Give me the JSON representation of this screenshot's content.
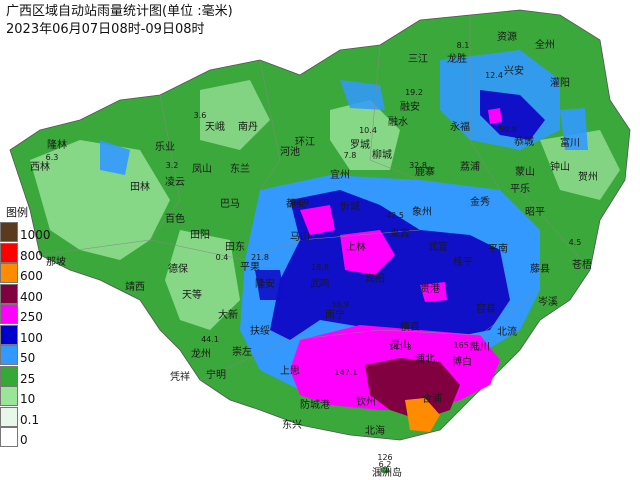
{
  "title": "广西区域自动站雨量统计图(单位 :毫米)",
  "subtitle": "2023年06月07日08时-09日08时",
  "legend": {
    "title": "图例",
    "items": [
      {
        "label": "1000",
        "color": "#5c3a1e"
      },
      {
        "label": "800",
        "color": "#ff0000"
      },
      {
        "label": "600",
        "color": "#ff8c00"
      },
      {
        "label": "400",
        "color": "#800040"
      },
      {
        "label": "250",
        "color": "#ff00ff"
      },
      {
        "label": "100",
        "color": "#0000cc"
      },
      {
        "label": "50",
        "color": "#3399ff"
      },
      {
        "label": "25",
        "color": "#33aa33"
      },
      {
        "label": "10",
        "color": "#99e699"
      },
      {
        "label": "0.1",
        "color": "#e8f8e8"
      },
      {
        "label": "0",
        "color": "#ffffff"
      }
    ]
  },
  "cities": [
    {
      "name": "资源"
    },
    {
      "name": "全州"
    },
    {
      "name": "三江"
    },
    {
      "name": "龙胜"
    },
    {
      "name": "兴安"
    },
    {
      "name": "灌阳"
    },
    {
      "name": "融安"
    },
    {
      "name": "永福"
    },
    {
      "name": "恭城"
    },
    {
      "name": "富川"
    },
    {
      "name": "隆林"
    },
    {
      "name": "西林"
    },
    {
      "name": "乐业"
    },
    {
      "name": "天峨"
    },
    {
      "name": "南丹"
    },
    {
      "name": "环江"
    },
    {
      "name": "罗城"
    },
    {
      "name": "融水"
    },
    {
      "name": "凤山"
    },
    {
      "name": "东兰"
    },
    {
      "name": "河池"
    },
    {
      "name": "宜州"
    },
    {
      "name": "柳城"
    },
    {
      "name": "鹿寨"
    },
    {
      "name": "荔浦"
    },
    {
      "name": "平乐"
    },
    {
      "name": "钟山"
    },
    {
      "name": "贺州"
    },
    {
      "name": "田林"
    },
    {
      "name": "凌云"
    },
    {
      "name": "巴马"
    },
    {
      "name": "都安"
    },
    {
      "name": "忻城"
    },
    {
      "name": "象州"
    },
    {
      "name": "金秀"
    },
    {
      "name": "蒙山"
    },
    {
      "name": "昭平"
    },
    {
      "name": "百色"
    },
    {
      "name": "田阳"
    },
    {
      "name": "田东"
    },
    {
      "name": "马山"
    },
    {
      "name": "上林"
    },
    {
      "name": "来宾"
    },
    {
      "name": "武宣"
    },
    {
      "name": "桂平"
    },
    {
      "name": "平南"
    },
    {
      "name": "藤县"
    },
    {
      "name": "苍梧"
    },
    {
      "name": "那坡"
    },
    {
      "name": "德保"
    },
    {
      "name": "平果"
    },
    {
      "name": "隆安"
    },
    {
      "name": "武鸣"
    },
    {
      "name": "宾阳"
    },
    {
      "name": "贵港"
    },
    {
      "name": "岑溪"
    },
    {
      "name": "靖西"
    },
    {
      "name": "天等"
    },
    {
      "name": "大新"
    },
    {
      "name": "扶绥"
    },
    {
      "name": "南宁"
    },
    {
      "name": "横县"
    },
    {
      "name": "容县"
    },
    {
      "name": "北流"
    },
    {
      "name": "龙州"
    },
    {
      "name": "崇左"
    },
    {
      "name": "宁明"
    },
    {
      "name": "凭祥"
    },
    {
      "name": "上思"
    },
    {
      "name": "灵山"
    },
    {
      "name": "浦北"
    },
    {
      "name": "陆川"
    },
    {
      "name": "博白"
    },
    {
      "name": "防城港"
    },
    {
      "name": "钦州"
    },
    {
      "name": "合浦"
    },
    {
      "name": "东兴"
    },
    {
      "name": "北海"
    },
    {
      "name": "涠洲岛"
    }
  ],
  "values": [
    {
      "text": "8.1"
    },
    {
      "text": "19.2"
    },
    {
      "text": "12.4"
    },
    {
      "text": "50.9"
    },
    {
      "text": "3.6"
    },
    {
      "text": "3.2"
    },
    {
      "text": "7.8"
    },
    {
      "text": "10.4"
    },
    {
      "text": "32.8"
    },
    {
      "text": "92.9"
    },
    {
      "text": "42.5"
    },
    {
      "text": "21.8"
    },
    {
      "text": "18.8"
    },
    {
      "text": "38.9"
    },
    {
      "text": "44.1"
    },
    {
      "text": "147.1"
    },
    {
      "text": "141.3"
    },
    {
      "text": "165.1"
    },
    {
      "text": "126"
    },
    {
      "text": "6.2"
    },
    {
      "text": "6.3"
    },
    {
      "text": "4.5"
    },
    {
      "text": "0.4"
    }
  ]
}
